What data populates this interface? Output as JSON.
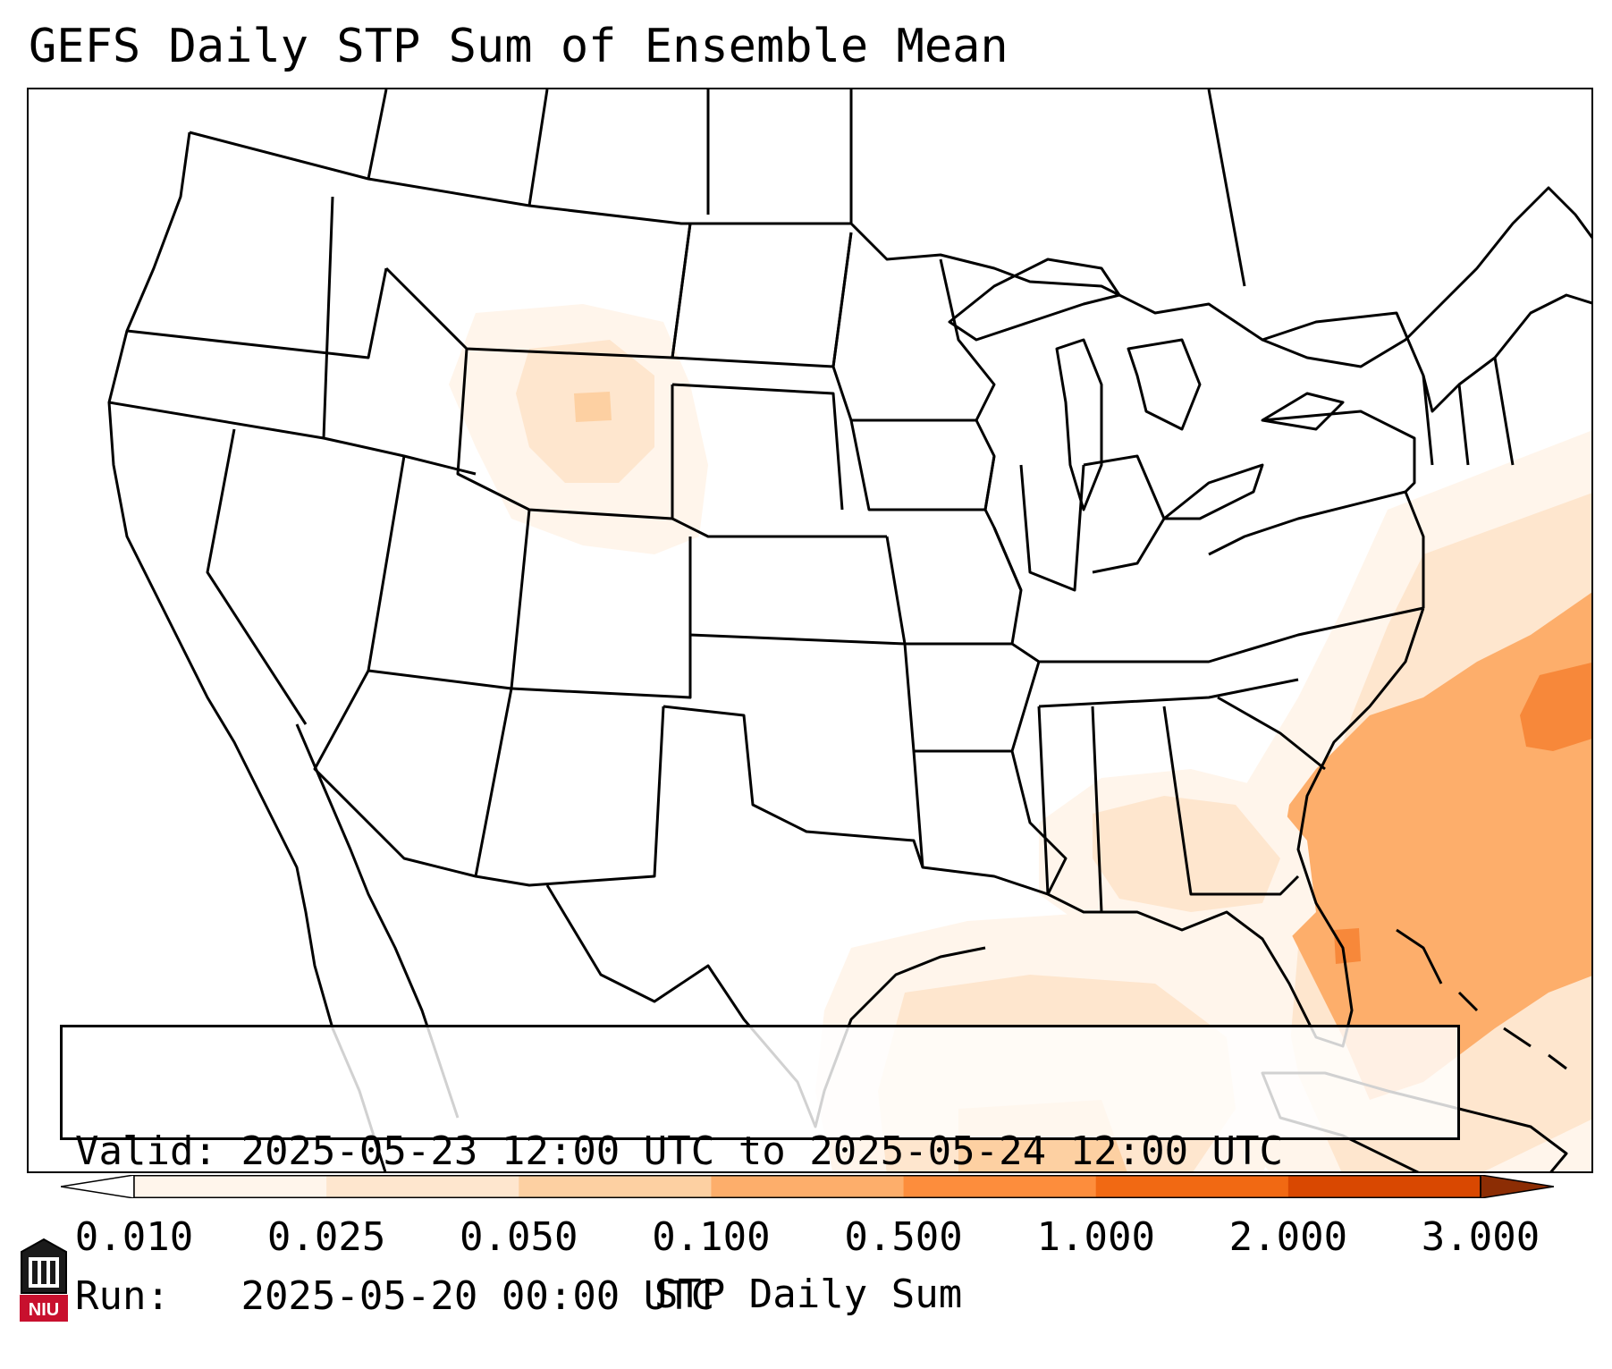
{
  "title": "GEFS Daily STP Sum of Ensemble Mean",
  "info": {
    "valid_label": "Valid:",
    "valid_value": "2025-05-23 12:00 UTC to 2025-05-24 12:00 UTC",
    "run_label": "Run:",
    "run_value": "2025-05-20 00:00 UTC"
  },
  "colorbar": {
    "label": "STP Daily Sum",
    "ticks": [
      "0.010",
      "0.025",
      "0.050",
      "0.100",
      "0.500",
      "1.000",
      "2.000",
      "3.000"
    ],
    "colors": [
      "#fff5eb",
      "#fee6ce",
      "#fdd0a2",
      "#fdae6b",
      "#fd8d3c",
      "#f16913",
      "#d94801"
    ],
    "under_color": "#ffffff",
    "over_color": "#8c2d04"
  },
  "logo": {
    "text": "NIU",
    "color": "#c8102e"
  }
}
